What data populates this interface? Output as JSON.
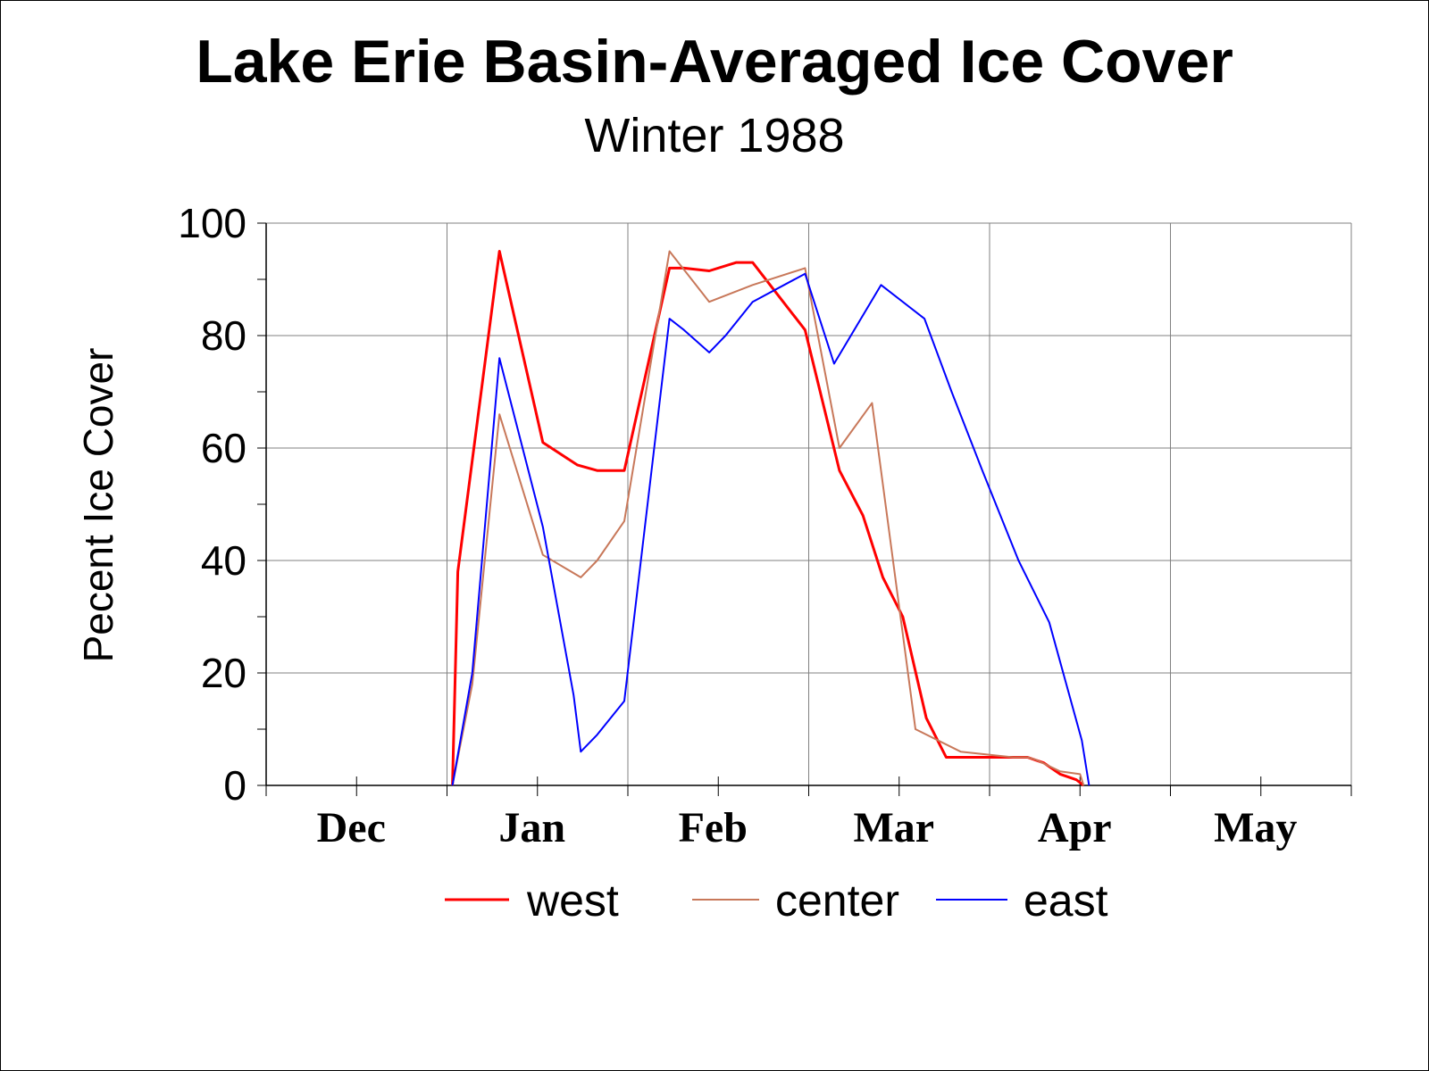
{
  "chart_data": {
    "type": "line",
    "title": "Lake Erie Basin-Averaged Ice Cover",
    "subtitle": "Winter 1988",
    "ylabel": "Pecent Ice Cover",
    "xlabel": "",
    "ylim": [
      0,
      100
    ],
    "yticks": [
      "0",
      "20",
      "40",
      "60",
      "80",
      "100"
    ],
    "xlim": [
      0,
      6
    ],
    "month_labels": [
      "Dec",
      "Jan",
      "Feb",
      "Mar",
      "Apr",
      "May"
    ],
    "grid": true,
    "legend_position": "bottom",
    "series": [
      {
        "name": "west",
        "color": "#ff0000",
        "x": [
          1.03,
          1.06,
          1.29,
          1.53,
          1.72,
          1.83,
          1.98,
          2.23,
          2.31,
          2.45,
          2.6,
          2.69,
          2.98,
          3.17,
          3.3,
          3.41,
          3.52,
          3.65,
          3.76,
          3.84,
          4.13,
          4.21,
          4.3,
          4.39,
          4.48,
          4.52
        ],
        "values": [
          0,
          38,
          95,
          61,
          57,
          56,
          56,
          92,
          92,
          91.5,
          93,
          93,
          81,
          56,
          48,
          37,
          30,
          12,
          5,
          5,
          5,
          5,
          4,
          2,
          1,
          0
        ]
      },
      {
        "name": "center",
        "color": "#c8785a",
        "x": [
          1.03,
          1.14,
          1.29,
          1.53,
          1.74,
          1.83,
          1.98,
          2.23,
          2.45,
          2.69,
          2.98,
          3.17,
          3.35,
          3.59,
          3.84,
          4.13,
          4.21,
          4.26,
          4.39,
          4.5,
          4.52
        ],
        "values": [
          0,
          18,
          66,
          41,
          37,
          40,
          47,
          95,
          86,
          89,
          92,
          60,
          68,
          10,
          6,
          5,
          5,
          4.5,
          2.5,
          2,
          0
        ]
      },
      {
        "name": "east",
        "color": "#0000ff",
        "x": [
          1.03,
          1.14,
          1.29,
          1.53,
          1.7,
          1.74,
          1.83,
          1.98,
          2.23,
          2.31,
          2.45,
          2.54,
          2.69,
          2.98,
          3.14,
          3.4,
          3.64,
          3.79,
          3.96,
          4.16,
          4.33,
          4.51,
          4.55
        ],
        "values": [
          0,
          20,
          76,
          46,
          16,
          6,
          9,
          15,
          83,
          81,
          77,
          80,
          86,
          91,
          75,
          89,
          83,
          70,
          56,
          40,
          29,
          8,
          0
        ]
      }
    ]
  }
}
